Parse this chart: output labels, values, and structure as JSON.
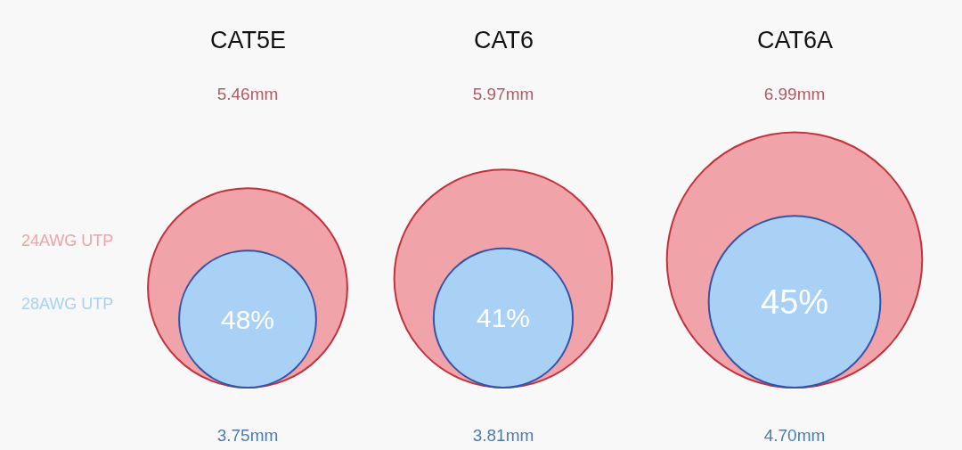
{
  "chart_data": {
    "type": "other",
    "categories": [
      "CAT5E",
      "CAT6",
      "CAT6A"
    ],
    "series": [
      {
        "name": "24AWG UTP",
        "color": "#f0a3a8",
        "values": [
          5.46,
          5.97,
          6.99
        ],
        "value_labels": [
          "5.46mm",
          "5.97mm",
          "6.99mm"
        ]
      },
      {
        "name": "28AWG UTP",
        "color": "#a9d1f6",
        "values": [
          3.75,
          3.81,
          4.7
        ],
        "value_labels": [
          "3.75mm",
          "3.81mm",
          "4.70mm"
        ]
      }
    ],
    "annotations": [
      {
        "text": "48%",
        "x": "CAT5E"
      },
      {
        "text": "41%",
        "x": "CAT6"
      },
      {
        "text": "45%",
        "x": "CAT6A"
      }
    ]
  }
}
